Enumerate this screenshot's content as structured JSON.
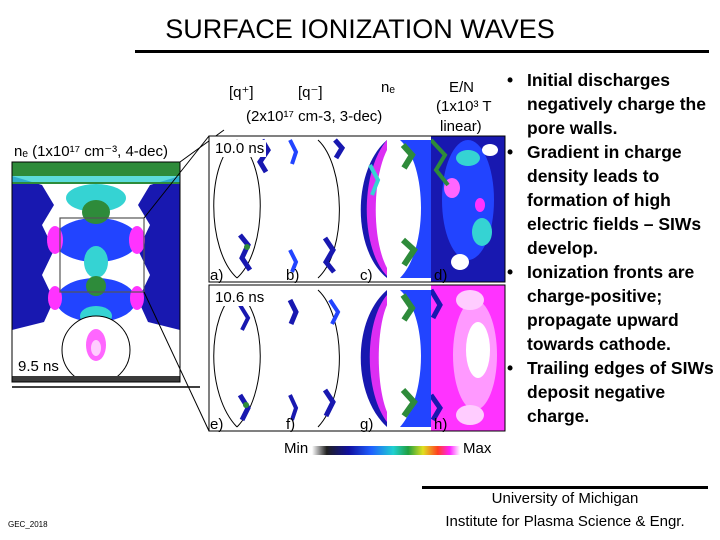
{
  "slide": {
    "title": "SURFACE IONIZATION WAVES",
    "bullets": [
      "Initial discharges negatively charge the pore walls.",
      "Gradient in charge density leads to formation of high electric fields – SIWs develop.",
      "Ionization fronts are charge-positive; propagate upward towards cathode.",
      "Trailing edges of SIWs deposit negative charge."
    ],
    "affiliation_line1": "University of Michigan",
    "affiliation_line2": "Institute for Plasma Science & Engr.",
    "footer_tag": "GEC_2018"
  },
  "figure": {
    "col_q_plus": "[q⁺]",
    "col_q_minus": "[q⁻]",
    "col_ne": "nₑ",
    "col_ne_range": "(2x10¹⁷ cm-3, 3-dec)",
    "col_en": "E/N",
    "col_en_range": "(1x10³ T",
    "col_en_scale": "linear)",
    "left_panel_label": "nₑ (1x10¹⁷ cm⁻³, 4-dec)",
    "left_time": "9.5 ns",
    "top_time": "10.0 ns",
    "bottom_time": "10.6 ns",
    "panel_letters": [
      "a)",
      "b)",
      "c)",
      "d)",
      "e)",
      "f)",
      "g)",
      "h)"
    ],
    "colorbar_min": "Min",
    "colorbar_max": "Max",
    "colors": {
      "dark_blue": "#1818b0",
      "blue": "#2244ff",
      "cyan": "#35d3d3",
      "green": "#2e8b3a",
      "magenta": "#ff33ff",
      "pink": "#ff99ff",
      "dark_gray": "#3a3a3a"
    }
  }
}
